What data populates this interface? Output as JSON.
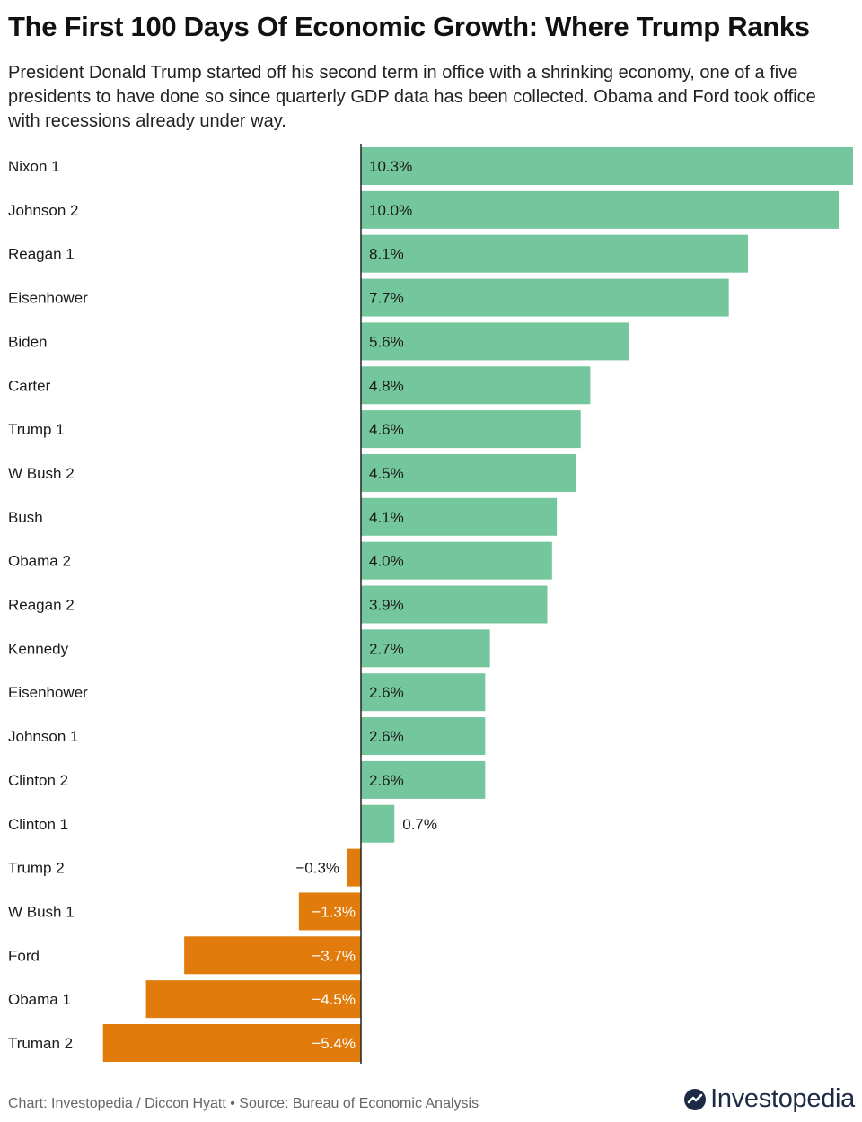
{
  "title": "The First 100 Days Of Economic Growth: Where Trump Ranks",
  "subtitle": "President Donald Trump started off his second term in office with a shrinking economy, one of a five presidents to have done so since quarterly GDP data has been collected. Obama and Ford took office with recessions already under way.",
  "footer": "Chart: Investopedia / Diccon Hyatt • Source: Bureau of Economic Analysis",
  "logo_text": "Investopedia",
  "colors": {
    "positive": "#74c69d",
    "negative": "#e07b0c",
    "axis": "#222222",
    "logo": "#1d2a45"
  },
  "chart_data": {
    "type": "bar",
    "orientation": "horizontal",
    "categories": [
      "Nixon 1",
      "Johnson 2",
      "Reagan 1",
      "Eisenhower",
      "Biden",
      "Carter",
      "Trump 1",
      "W Bush 2",
      "Bush",
      "Obama 2",
      "Reagan 2",
      "Kennedy",
      "Eisenhower",
      "Johnson 1",
      "Clinton 2",
      "Clinton 1",
      "Trump 2",
      "W Bush 1",
      "Ford",
      "Obama 1",
      "Truman 2"
    ],
    "values": [
      10.3,
      10.0,
      8.1,
      7.7,
      5.6,
      4.8,
      4.6,
      4.5,
      4.1,
      4.0,
      3.9,
      2.7,
      2.6,
      2.6,
      2.6,
      0.7,
      -0.3,
      -1.3,
      -3.7,
      -4.5,
      -5.4
    ],
    "labels": [
      "10.3%",
      "10.0%",
      "8.1%",
      "7.7%",
      "5.6%",
      "4.8%",
      "4.6%",
      "4.5%",
      "4.1%",
      "4.0%",
      "3.9%",
      "2.7%",
      "2.6%",
      "2.6%",
      "2.6%",
      "0.7%",
      "−0.3%",
      "−1.3%",
      "−3.7%",
      "−4.5%",
      "−5.4%"
    ],
    "xlim": [
      -5.4,
      10.3
    ],
    "grid": false,
    "legend": "none"
  }
}
